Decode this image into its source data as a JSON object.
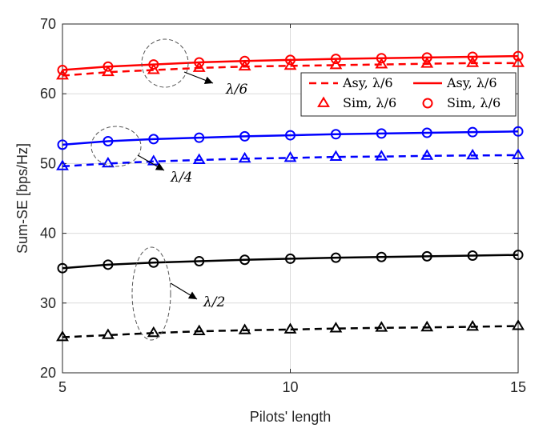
{
  "chart_data": {
    "type": "line",
    "xlabel": "Pilots' length",
    "ylabel": "Sum-SE [bps/Hz]",
    "xlim": [
      5,
      15
    ],
    "ylim": [
      20,
      70
    ],
    "xticks": [
      "5",
      "10",
      "15"
    ],
    "yticks": [
      "20",
      "30",
      "40",
      "50",
      "60",
      "70"
    ],
    "grid": true,
    "x": [
      5,
      6,
      7,
      8,
      9,
      10,
      11,
      12,
      13,
      14,
      15
    ],
    "colors": {
      "red": "#ff0000",
      "blue": "#0000ff",
      "black": "#000000"
    },
    "series": [
      {
        "name": "Asy, λ/6 (dashed)",
        "color": "red",
        "style": "dashed",
        "values": [
          62.6,
          63.1,
          63.4,
          63.7,
          63.9,
          64.0,
          64.1,
          64.2,
          64.3,
          64.4,
          64.4
        ]
      },
      {
        "name": "Sim, λ/6 (triangle)",
        "color": "red",
        "marker": "triangle",
        "values": [
          62.6,
          63.1,
          63.4,
          63.7,
          63.9,
          64.0,
          64.1,
          64.2,
          64.3,
          64.4,
          64.4
        ]
      },
      {
        "name": "Asy, λ/6 (solid)",
        "color": "red",
        "style": "solid",
        "values": [
          63.4,
          63.9,
          64.2,
          64.5,
          64.7,
          64.85,
          65.0,
          65.1,
          65.2,
          65.3,
          65.4
        ]
      },
      {
        "name": "Sim, λ/6 (circle)",
        "color": "red",
        "marker": "circle",
        "values": [
          63.4,
          63.9,
          64.2,
          64.5,
          64.7,
          64.85,
          65.0,
          65.1,
          65.2,
          65.3,
          65.4
        ]
      },
      {
        "name": "Asy, λ/4 (dashed)",
        "color": "blue",
        "style": "dashed",
        "values": [
          49.6,
          50.0,
          50.3,
          50.5,
          50.7,
          50.8,
          50.95,
          51.0,
          51.1,
          51.15,
          51.2
        ]
      },
      {
        "name": "Sim, λ/4 (triangle)",
        "color": "blue",
        "marker": "triangle",
        "values": [
          49.6,
          50.0,
          50.3,
          50.5,
          50.7,
          50.8,
          50.95,
          51.0,
          51.1,
          51.15,
          51.2
        ]
      },
      {
        "name": "Asy, λ/4 (solid)",
        "color": "blue",
        "style": "solid",
        "values": [
          52.7,
          53.2,
          53.5,
          53.7,
          53.9,
          54.05,
          54.2,
          54.3,
          54.4,
          54.5,
          54.6
        ]
      },
      {
        "name": "Sim, λ/4 (circle)",
        "color": "blue",
        "marker": "circle",
        "values": [
          52.7,
          53.2,
          53.5,
          53.7,
          53.9,
          54.05,
          54.2,
          54.3,
          54.4,
          54.5,
          54.6
        ]
      },
      {
        "name": "Asy, λ/2 (dashed)",
        "color": "black",
        "style": "dashed",
        "values": [
          25.1,
          25.4,
          25.7,
          25.95,
          26.1,
          26.2,
          26.35,
          26.45,
          26.5,
          26.6,
          26.7
        ]
      },
      {
        "name": "Sim, λ/2 (triangle)",
        "color": "black",
        "marker": "triangle",
        "values": [
          25.1,
          25.4,
          25.7,
          25.95,
          26.1,
          26.2,
          26.35,
          26.45,
          26.5,
          26.6,
          26.7
        ]
      },
      {
        "name": "Asy, λ/2 (solid)",
        "color": "black",
        "style": "solid",
        "values": [
          35.0,
          35.5,
          35.8,
          36.0,
          36.2,
          36.35,
          36.5,
          36.6,
          36.7,
          36.8,
          36.9
        ]
      },
      {
        "name": "Sim, λ/2 (circle)",
        "color": "black",
        "marker": "circle",
        "values": [
          35.0,
          35.5,
          35.8,
          36.0,
          36.2,
          36.35,
          36.5,
          36.6,
          36.7,
          36.8,
          36.9
        ]
      }
    ],
    "legend": {
      "position": "upper-right",
      "entries": [
        {
          "label": "Asy, λ/6",
          "style": "dashed",
          "color": "red"
        },
        {
          "label": "Asy, λ/6",
          "style": "solid",
          "color": "red"
        },
        {
          "label": "Sim, λ/6",
          "marker": "triangle",
          "color": "red"
        },
        {
          "label": "Sim, λ/6",
          "marker": "circle",
          "color": "red"
        }
      ]
    },
    "annotations": [
      {
        "text": "λ/6",
        "group": "red"
      },
      {
        "text": "λ/4",
        "group": "blue"
      },
      {
        "text": "λ/2",
        "group": "black"
      }
    ]
  }
}
